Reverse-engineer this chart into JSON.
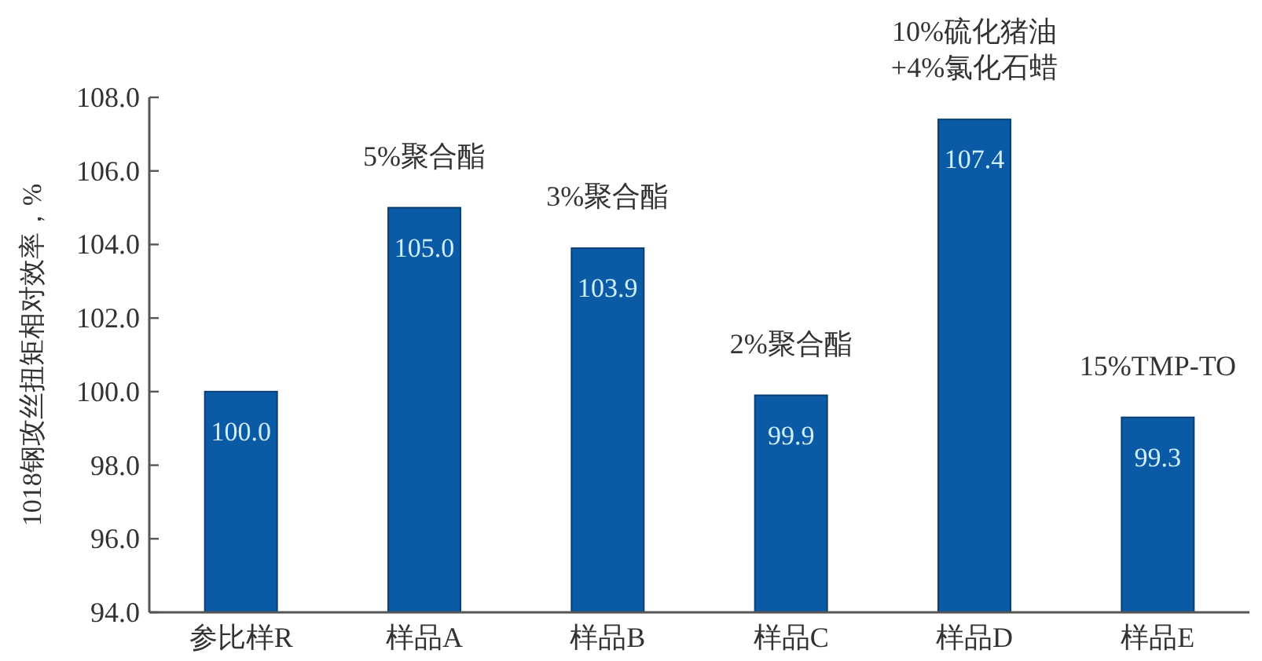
{
  "chart_data": {
    "type": "bar",
    "ylabel": "1018钢攻丝扭矩相对效率，%",
    "categories": [
      "参比样R",
      "样品A",
      "样品B",
      "样品C",
      "样品D",
      "样品E"
    ],
    "values": [
      100.0,
      105.0,
      103.9,
      99.9,
      107.4,
      99.3
    ],
    "value_labels": [
      "100.0",
      "105.0",
      "103.9",
      "99.9",
      "107.4",
      "99.3"
    ],
    "color": "#0b5aa6",
    "ylim": [
      94,
      108
    ],
    "yticks": [
      {
        "value": 94,
        "label": "94.0"
      },
      {
        "value": 96,
        "label": "96.0"
      },
      {
        "value": 98,
        "label": "98.0"
      },
      {
        "value": 100,
        "label": "100.0"
      },
      {
        "value": 102,
        "label": "102.0"
      },
      {
        "value": 104,
        "label": "104.0"
      },
      {
        "value": 106,
        "label": "106.0"
      },
      {
        "value": 108,
        "label": "108.0"
      }
    ],
    "annotations": [
      {
        "text": "5%聚合酯",
        "x": "样品A",
        "y": 105.0
      },
      {
        "text": "3%聚合酯",
        "x": "样品B",
        "y": 103.9
      },
      {
        "text": "2%聚合酯",
        "x": "样品C",
        "y": 99.9
      },
      {
        "text": "10%硫化猪油\n+4%氯化石蜡",
        "x": "样品D",
        "y": 107.4
      },
      {
        "text": "15%TMP-TO",
        "x": "样品E",
        "y": 99.3
      }
    ],
    "grid": false
  }
}
